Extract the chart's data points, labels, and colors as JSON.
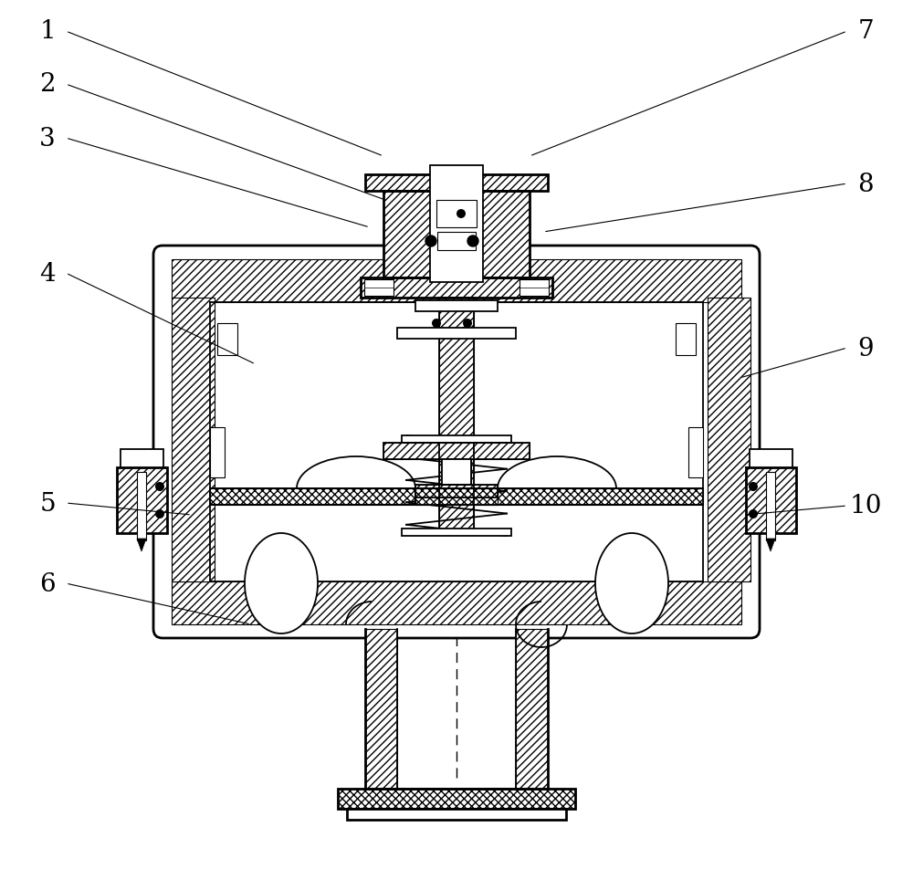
{
  "bg_color": "#ffffff",
  "line_color": "#000000",
  "figsize": [
    10.0,
    9.53
  ],
  "dpi": 100,
  "label_fontsize": 20
}
